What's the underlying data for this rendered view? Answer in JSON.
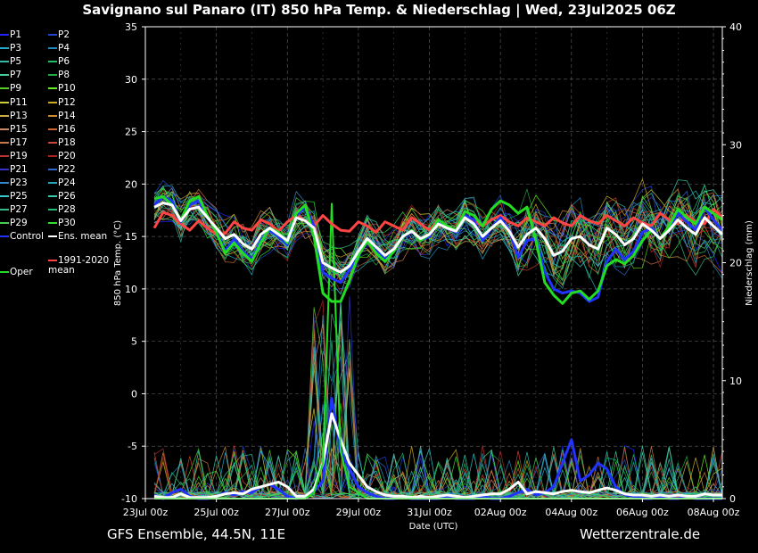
{
  "title": "Savignano sul Panaro  (IT)  850 hPa Temp. & Niederschlag | Wed, 23Jul2025 06Z",
  "footer": {
    "left": "GFS Ensemble, 44.5N, 11E",
    "right": "Wetterzentrale.de"
  },
  "legend": {
    "members": [
      "P1",
      "P2",
      "P3",
      "P4",
      "P5",
      "P6",
      "P7",
      "P8",
      "P9",
      "P10",
      "P11",
      "P12",
      "P13",
      "P14",
      "P15",
      "P16",
      "P17",
      "P18",
      "P19",
      "P20",
      "P21",
      "P22",
      "P23",
      "P24",
      "P25",
      "P26",
      "P27",
      "P28",
      "P29",
      "P30"
    ],
    "member_colors": [
      "#2222ff",
      "#2244cc",
      "#22aacc",
      "#2288bb",
      "#33bbaa",
      "#22bb66",
      "#44cc99",
      "#22aa44",
      "#55cc22",
      "#66ee22",
      "#cccc33",
      "#ccaa22",
      "#ccaa44",
      "#cc8833",
      "#cc8866",
      "#cc6633",
      "#cc7744",
      "#cc4433",
      "#bb3333",
      "#aa2222",
      "#3333cc",
      "#3366cc",
      "#3388cc",
      "#22aabb",
      "#33cccc",
      "#33ccaa",
      "#33bb88",
      "#22bb77",
      "#44cc55",
      "#33dd33"
    ],
    "control": "Control",
    "ens_mean": "Ens. mean",
    "climate_mean": "1991-2020 mean",
    "oper": "Oper"
  },
  "chart_data": {
    "type": "line",
    "x_tick_labels": [
      "23Jul 00z",
      "25Jul 00z",
      "27Jul 00z",
      "29Jul 00z",
      "31Jul 00z",
      "02Aug 00z",
      "04Aug 00z",
      "06Aug 00z",
      "08Aug 00z"
    ],
    "xlabel": "Date (UTC)",
    "ylabel": "850 hPa Temp. (°C)",
    "y2label": "Niederschlag (mm)",
    "ylim": [
      -10,
      35
    ],
    "y_ticks": [
      -10,
      -5,
      0,
      5,
      10,
      15,
      20,
      25,
      30,
      35
    ],
    "y2lim": [
      0,
      40
    ],
    "y2_ticks": [
      0,
      10,
      20,
      30,
      40
    ],
    "grid": true,
    "x_days": [
      0.25,
      0.5,
      0.75,
      1,
      1.25,
      1.5,
      1.75,
      2,
      2.25,
      2.5,
      2.75,
      3,
      3.25,
      3.5,
      3.75,
      4,
      4.25,
      4.5,
      4.75,
      5,
      5.25,
      5.5,
      5.75,
      6,
      6.25,
      6.5,
      6.75,
      7,
      7.25,
      7.5,
      7.75,
      8,
      8.25,
      8.5,
      8.75,
      9,
      9.25,
      9.5,
      9.75,
      10,
      10.25,
      10.5,
      10.75,
      11,
      11.25,
      11.5,
      11.75,
      12,
      12.25,
      12.5,
      12.75,
      13,
      13.25,
      13.5,
      13.75,
      14,
      14.25,
      14.5,
      14.75,
      15,
      15.25,
      15.5,
      15.75,
      16,
      16.25
    ],
    "series": [
      {
        "name": "1991-2020 mean",
        "color": "#ff4444",
        "values": [
          15.8,
          17.3,
          17.0,
          16.2,
          15.6,
          16.5,
          15.8,
          15.2,
          15.3,
          16.4,
          15.8,
          15.6,
          16.6,
          16.2,
          15.5,
          16.4,
          17.0,
          16.5,
          16.0,
          17.0,
          16.2,
          15.6,
          15.5,
          16.4,
          16.0,
          15.4,
          16.4,
          16.0,
          15.6,
          16.8,
          16.2,
          15.6,
          16.6,
          16.0,
          15.6,
          16.8,
          16.5,
          16.0,
          16.6,
          17.0,
          16.4,
          16.0,
          16.8,
          16.4,
          16.0,
          16.8,
          16.3,
          16.0,
          17.0,
          16.5,
          16.2,
          17.0,
          16.5,
          16.0,
          16.8,
          16.3,
          16.0,
          17.2,
          16.6,
          16.2,
          17.0,
          16.4,
          16.2,
          17.6,
          16.8
        ]
      },
      {
        "name": "Ens. mean",
        "color": "#ffffff",
        "values": [
          17.8,
          18.2,
          18.0,
          16.5,
          17.6,
          17.8,
          16.8,
          15.8,
          14.8,
          15.2,
          14.3,
          13.8,
          15.2,
          15.8,
          15.2,
          14.6,
          16.8,
          16.5,
          15.8,
          12.5,
          12.0,
          11.6,
          12.2,
          13.6,
          14.8,
          14.0,
          13.2,
          13.8,
          15.0,
          15.5,
          14.8,
          15.2,
          16.2,
          15.8,
          15.5,
          16.8,
          16.2,
          15.0,
          15.8,
          16.5,
          15.5,
          14.0,
          15.2,
          15.8,
          14.8,
          13.2,
          13.6,
          14.8,
          15.0,
          14.2,
          13.8,
          15.8,
          15.2,
          14.2,
          14.8,
          16.2,
          15.6,
          14.8,
          15.6,
          16.6,
          15.8,
          15.2,
          16.8,
          16.0,
          15.2
        ]
      },
      {
        "name": "Control",
        "color": "#2233ff",
        "values": [
          18.0,
          18.8,
          18.4,
          16.4,
          18.0,
          18.4,
          16.8,
          15.6,
          13.6,
          14.8,
          13.6,
          12.8,
          14.6,
          15.6,
          15.0,
          14.2,
          17.0,
          17.8,
          16.0,
          11.6,
          11.0,
          10.6,
          11.8,
          13.2,
          14.6,
          13.6,
          12.8,
          13.6,
          15.0,
          15.6,
          14.6,
          15.0,
          16.4,
          15.8,
          15.4,
          17.0,
          16.6,
          14.6,
          15.8,
          16.8,
          15.6,
          13.0,
          14.6,
          14.8,
          11.6,
          10.0,
          9.6,
          9.8,
          9.6,
          8.8,
          9.2,
          12.6,
          13.8,
          12.8,
          13.6,
          15.4,
          15.8,
          14.8,
          15.8,
          17.2,
          16.4,
          15.6,
          17.8,
          16.6,
          15.6
        ]
      },
      {
        "name": "Oper",
        "color": "#22dd22",
        "values": [
          18.6,
          18.8,
          18.0,
          16.6,
          18.4,
          18.8,
          17.0,
          15.4,
          13.4,
          14.4,
          13.4,
          12.6,
          14.4,
          15.8,
          15.4,
          14.4,
          17.2,
          18.0,
          15.0,
          9.6,
          8.8,
          8.8,
          10.8,
          13.2,
          14.6,
          13.4,
          12.6,
          13.6,
          15.0,
          15.6,
          14.6,
          15.2,
          16.6,
          16.0,
          15.6,
          17.4,
          17.0,
          16.0,
          17.6,
          18.4,
          18.0,
          17.2,
          17.8,
          14.6,
          10.6,
          9.4,
          8.6,
          9.6,
          9.8,
          9.0,
          9.8,
          12.2,
          12.8,
          12.4,
          13.2,
          14.6,
          15.6,
          14.8,
          16.0,
          17.6,
          16.8,
          16.2,
          17.8,
          17.2,
          16.6
        ]
      },
      {
        "name": "Control precip",
        "color": "#2233ff",
        "axis": "y2",
        "values": [
          0.3,
          0,
          0.5,
          0.8,
          0.2,
          0,
          0,
          0.2,
          0.5,
          0.3,
          0.6,
          0.5,
          1.0,
          1.2,
          0.8,
          0.2,
          0,
          0.2,
          0.6,
          1.5,
          8.5,
          4.0,
          2.5,
          1.0,
          0.5,
          0.2,
          0,
          0,
          0.2,
          0,
          0,
          0,
          0,
          0.2,
          0,
          0,
          0,
          0.2,
          0,
          0,
          0.2,
          0.5,
          0.8,
          0.3,
          0.5,
          1.0,
          3.0,
          5.0,
          1.5,
          2.0,
          3.0,
          2.5,
          1.0,
          0.3,
          0.2,
          0,
          0,
          0.2,
          0,
          0,
          0.2,
          0,
          0,
          0,
          0
        ]
      },
      {
        "name": "Ens. mean precip",
        "color": "#ffffff",
        "axis": "y2",
        "values": [
          0.2,
          0.1,
          0.1,
          0.4,
          0.1,
          0.1,
          0.1,
          0.2,
          0.4,
          0.5,
          0.4,
          0.8,
          1.0,
          1.2,
          1.4,
          1.0,
          0.2,
          0.2,
          0.8,
          3.0,
          7.2,
          5.0,
          3.0,
          2.0,
          1.0,
          0.6,
          0.3,
          0.2,
          0.2,
          0.1,
          0.2,
          0.1,
          0.2,
          0.3,
          0.2,
          0.1,
          0.2,
          0.3,
          0.4,
          0.4,
          0.8,
          1.4,
          0.4,
          0.6,
          0.5,
          0.4,
          0.6,
          0.7,
          0.6,
          0.5,
          0.7,
          0.9,
          0.7,
          0.4,
          0.3,
          0.3,
          0.2,
          0.3,
          0.2,
          0.3,
          0.2,
          0.2,
          0.4,
          0.3,
          0.3
        ]
      },
      {
        "name": "Oper precip",
        "color": "#22dd22",
        "axis": "y2",
        "values": [
          0,
          0,
          0,
          0,
          0,
          0,
          0,
          0,
          0,
          0,
          0,
          0,
          0,
          0,
          0,
          0,
          0,
          0,
          0.5,
          3.0,
          25.0,
          4.0,
          1.0,
          0.5,
          0,
          0,
          0,
          0,
          0,
          0,
          0,
          0,
          0,
          0,
          0,
          0,
          0,
          0,
          0,
          0,
          0,
          0,
          0,
          0,
          0,
          0,
          0,
          0,
          0,
          0,
          0,
          0,
          0,
          0,
          0,
          0,
          0,
          0,
          0,
          0,
          0,
          0,
          0,
          0,
          0
        ]
      }
    ]
  }
}
